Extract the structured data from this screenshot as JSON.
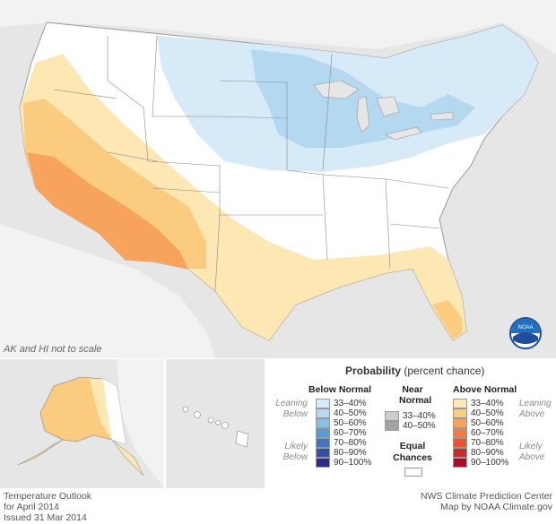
{
  "map": {
    "note": "AK and HI not to scale",
    "noaa_logo_text": "NOAA"
  },
  "legend": {
    "title": "Probability",
    "title_suffix": "(percent chance)",
    "below_header": "Below Normal",
    "near_header": [
      "Near",
      "Normal"
    ],
    "above_header": "Above Normal",
    "leaning_below": [
      "Leaning",
      "Below"
    ],
    "likely_below": [
      "Likely",
      "Below"
    ],
    "leaning_above": [
      "Leaning",
      "Above"
    ],
    "likely_above": [
      "Likely",
      "Above"
    ],
    "below": [
      {
        "label": "33–40%",
        "color": "#d6eaf7"
      },
      {
        "label": "40–50%",
        "color": "#b3d8ef"
      },
      {
        "label": "50–60%",
        "color": "#89bfe4"
      },
      {
        "label": "60–70%",
        "color": "#5b99d3"
      },
      {
        "label": "70–80%",
        "color": "#4573be"
      },
      {
        "label": "80–90%",
        "color": "#3451a3"
      },
      {
        "label": "90–100%",
        "color": "#2c2d85"
      }
    ],
    "near": [
      {
        "label": "33–40%",
        "color": "#cccccc"
      },
      {
        "label": "40–50%",
        "color": "#a3a3a3"
      }
    ],
    "equal_chances": [
      "Equal",
      "Chances"
    ],
    "above": [
      {
        "label": "33–40%",
        "color": "#fde7b2"
      },
      {
        "label": "40–50%",
        "color": "#fbcb80"
      },
      {
        "label": "50–60%",
        "color": "#f7a35c"
      },
      {
        "label": "60–70%",
        "color": "#f07b43"
      },
      {
        "label": "70–80%",
        "color": "#e25538"
      },
      {
        "label": "80–90%",
        "color": "#cc2a2c"
      },
      {
        "label": "90–100%",
        "color": "#a50f26"
      }
    ]
  },
  "footer": {
    "left": [
      "Temperature Outlook",
      "for April 2014",
      "Issued 31 Mar 2014"
    ],
    "right": [
      "NWS Climate Prediction Center",
      "Map by NOAA Climate.gov"
    ]
  }
}
